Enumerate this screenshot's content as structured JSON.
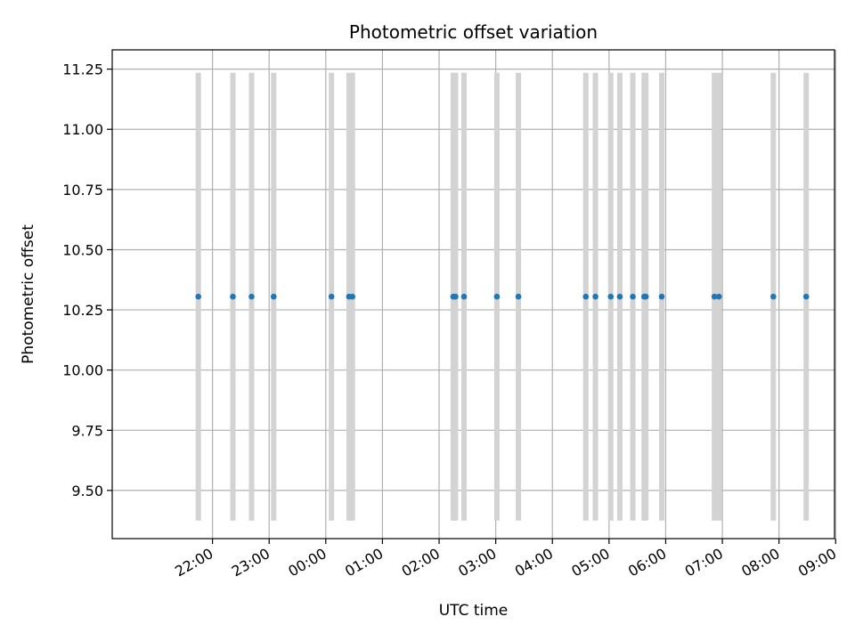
{
  "chart_data": {
    "type": "scatter",
    "title": "Photometric offset variation",
    "xlabel": "UTC time",
    "ylabel": "Photometric offset",
    "x_unit": "hours since 00:00 UTC (negative = previous day)",
    "xlim": [
      -3.77,
      8.98
    ],
    "ylim": [
      9.3,
      11.33
    ],
    "grid": true,
    "legend": "none",
    "marker_color": "#1f77b4",
    "band_color": "#d3d3d3",
    "y_ticks": [
      9.5,
      9.75,
      10.0,
      10.25,
      10.5,
      10.75,
      11.0,
      11.25
    ],
    "y_tick_labels": [
      "9.50",
      "9.75",
      "10.00",
      "10.25",
      "10.50",
      "10.75",
      "11.00",
      "11.25"
    ],
    "x_ticks": [
      -2,
      -1,
      0,
      1,
      2,
      3,
      4,
      5,
      6,
      7,
      8,
      9
    ],
    "x_tick_labels": [
      "22:00",
      "23:00",
      "00:00",
      "01:00",
      "02:00",
      "03:00",
      "04:00",
      "05:00",
      "06:00",
      "07:00",
      "08:00",
      "09:00"
    ],
    "band_ymin": 9.375,
    "band_ymax": 11.235,
    "x": [
      -2.25,
      -1.64,
      -1.31,
      -0.92,
      0.1,
      0.41,
      0.47,
      2.25,
      2.29,
      2.44,
      3.02,
      3.4,
      4.59,
      4.76,
      5.03,
      5.19,
      5.42,
      5.62,
      5.65,
      5.93,
      6.86,
      6.94,
      7.9,
      8.48
    ],
    "y": [
      10.305,
      10.305,
      10.305,
      10.305,
      10.305,
      10.305,
      10.305,
      10.305,
      10.305,
      10.305,
      10.305,
      10.305,
      10.305,
      10.305,
      10.305,
      10.305,
      10.305,
      10.305,
      10.305,
      10.305,
      10.305,
      10.305,
      10.305,
      10.305
    ]
  }
}
